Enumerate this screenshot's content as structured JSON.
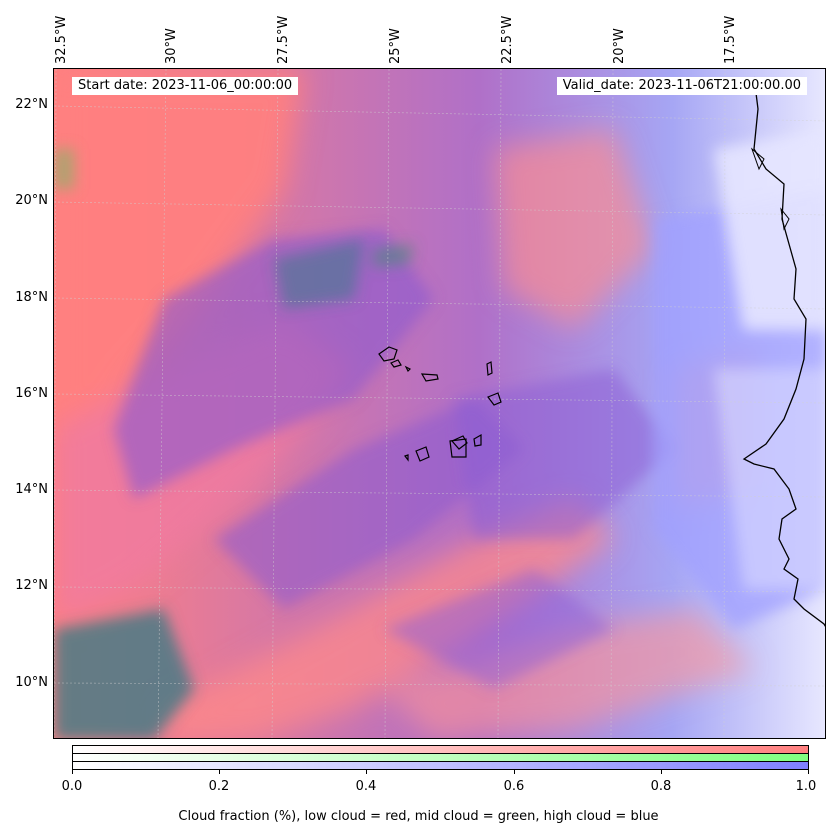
{
  "header": {
    "start_date": "Start date: 2023-11-06_00:00:00",
    "valid_date": "Valid_date: 2023-11-06T21:00:00.00"
  },
  "map": {
    "longitude_labels": [
      "32.5°W",
      "30°W",
      "27.5°W",
      "25°W",
      "22.5°W",
      "20°W",
      "17.5°W"
    ],
    "latitude_labels": [
      "22°N",
      "20°N",
      "18°N",
      "16°N",
      "14°N",
      "12°N",
      "10°N"
    ],
    "colors": {
      "low_cloud": "#ff8080",
      "mid_cloud": "#80ff80",
      "high_cloud": "#8080ff",
      "coastline": "#000000"
    }
  },
  "colorbar": {
    "ticks": [
      "0.0",
      "0.2",
      "0.4",
      "0.6",
      "0.8",
      "1.0"
    ],
    "caption": "Cloud fraction (%), low cloud = red, mid cloud = green, high cloud = blue"
  }
}
